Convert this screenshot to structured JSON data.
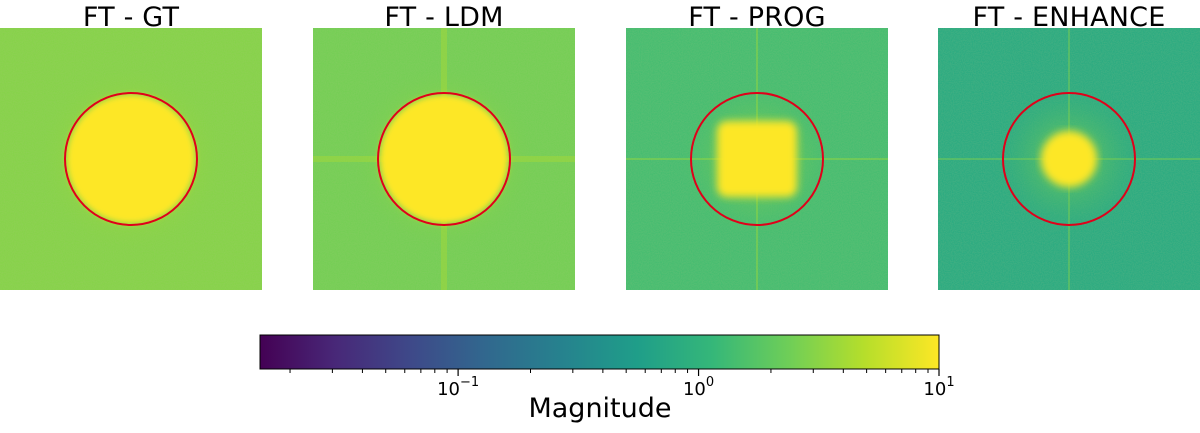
{
  "chart_data": [
    {
      "type": "heatmap",
      "title": "FT - GT",
      "description_scale": "log",
      "background_value": 3.0,
      "core_value": 10,
      "core_shape": "disk",
      "circle_color": "#e0001a",
      "cross_artifacts": false
    },
    {
      "type": "heatmap",
      "title": "FT - LDM",
      "description_scale": "log",
      "background_value": 2.5,
      "core_value": 10,
      "core_shape": "disk",
      "circle_color": "#e0001a",
      "cross_artifacts": true
    },
    {
      "type": "heatmap",
      "title": "FT - PROG",
      "description_scale": "log",
      "background_value": 1.4,
      "core_value": 10,
      "core_shape": "square",
      "circle_color": "#e0001a",
      "cross_artifacts": true
    },
    {
      "type": "heatmap",
      "title": "FT - ENHANCE",
      "description_scale": "log",
      "background_value": 0.8,
      "core_value": 10,
      "core_shape": "small-disk",
      "circle_color": "#e0001a",
      "cross_artifacts": true
    }
  ],
  "colorbar": {
    "label": "Magnitude",
    "scale": "log",
    "range": [
      0.015,
      10
    ],
    "ticks": [
      {
        "value": 0.1,
        "base": "10",
        "exp": "−1"
      },
      {
        "value": 1,
        "base": "10",
        "exp": "0"
      },
      {
        "value": 10,
        "base": "10",
        "exp": "1"
      }
    ],
    "colormap": "viridis",
    "stops": [
      "#440154",
      "#482878",
      "#3e4989",
      "#31688e",
      "#26828e",
      "#1f9e89",
      "#35b779",
      "#6ece58",
      "#b5de2b",
      "#fde725"
    ]
  }
}
